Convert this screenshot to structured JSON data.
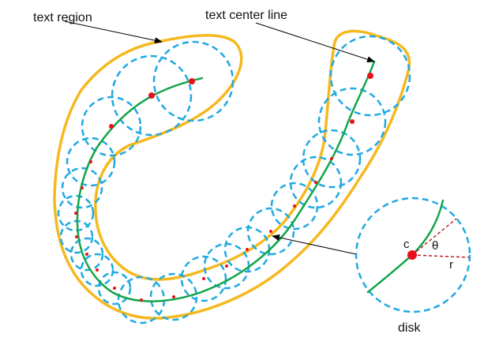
{
  "labels": {
    "text_region": "text region",
    "text_center_line": "text center line",
    "disk": "disk",
    "center": "c",
    "theta": "θ",
    "radius": "r"
  },
  "colors": {
    "region_outline": "#F6B81E",
    "disk_outline": "#1FA9E1",
    "center_line": "#12A54A",
    "center_point": "#E8111B",
    "angle_line": "#B5121B",
    "arrow": "#000000",
    "text": "#111111"
  },
  "icons": {
    "arrowhead": "arrowhead-icon",
    "center_dot": "center-dot-icon"
  }
}
